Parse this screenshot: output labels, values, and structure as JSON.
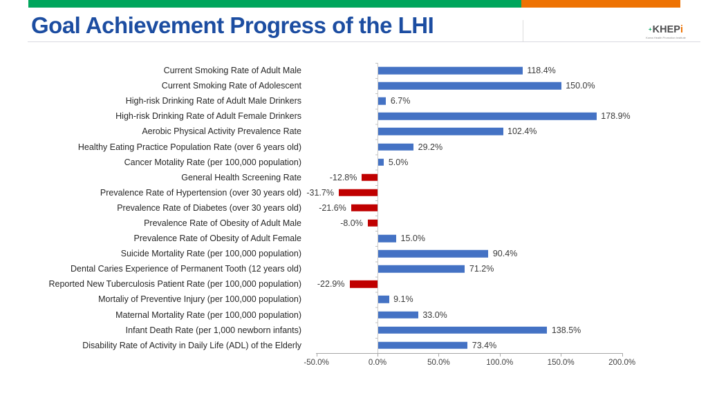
{
  "header": {
    "title": "Goal Achievement Progress of the LHI",
    "logo": {
      "text_main": "KHEP",
      "text_i": "i",
      "plus_icon": "+",
      "subtext": "Korea Health Promotion Institute"
    }
  },
  "colors": {
    "accent_green": "#00a65c",
    "accent_orange": "#ee7202",
    "title_blue": "#1c4da1",
    "bar_blue": "#4472c4",
    "bar_red": "#c00000"
  },
  "chart_data": {
    "type": "bar",
    "orientation": "horizontal",
    "title": "Goal Achievement Progress of the LHI",
    "xlabel": "",
    "ylabel": "",
    "xlim": [
      -50,
      200
    ],
    "grid": false,
    "legend": "none",
    "x_ticks": [
      {
        "value": -50,
        "label": "-50.0%"
      },
      {
        "value": 0,
        "label": "0.0%"
      },
      {
        "value": 50,
        "label": "50.0%"
      },
      {
        "value": 100,
        "label": "100.0%"
      },
      {
        "value": 150,
        "label": "150.0%"
      },
      {
        "value": 200,
        "label": "200.0%"
      }
    ],
    "bar_colors": {
      "positive": "#4472c4",
      "negative": "#c00000"
    },
    "rows": [
      {
        "category": "Current Smoking Rate of Adult Male",
        "value": 118.4,
        "label": "118.4%"
      },
      {
        "category": "Current Smoking Rate of  Adolescent",
        "value": 150.0,
        "label": "150.0%"
      },
      {
        "category": "High-risk Drinking Rate of Adult Male Drinkers",
        "value": 6.7,
        "label": "6.7%"
      },
      {
        "category": "High-risk Drinking Rate of Adult Female Drinkers",
        "value": 178.9,
        "label": "178.9%"
      },
      {
        "category": "Aerobic Physical Activity Prevalence Rate",
        "value": 102.4,
        "label": "102.4%"
      },
      {
        "category": "Healthy Eating  Practice Population Rate (over 6 years old)",
        "value": 29.2,
        "label": "29.2%"
      },
      {
        "category": "Cancer Motality Rate (per 100,000 population)",
        "value": 5.0,
        "label": "5.0%"
      },
      {
        "category": "General Health Screening Rate",
        "value": -12.8,
        "label": "-12.8%"
      },
      {
        "category": "Prevalence Rate of Hypertension (over 30 years old)",
        "value": -31.7,
        "label": "-31.7%"
      },
      {
        "category": "Prevalence Rate of Diabetes (over 30 years old)",
        "value": -21.6,
        "label": "-21.6%"
      },
      {
        "category": "Prevalence Rate of Obesity of Adult Male",
        "value": -8.0,
        "label": "-8.0%"
      },
      {
        "category": "Prevalence Rate of Obesity of Adult Female",
        "value": 15.0,
        "label": "15.0%"
      },
      {
        "category": "Suicide Mortality Rate (per 100,000 population)",
        "value": 90.4,
        "label": "90.4%"
      },
      {
        "category": "Dental Caries Experience of Permanent Tooth (12 years old)",
        "value": 71.2,
        "label": "71.2%"
      },
      {
        "category": "Reported New Tuberculosis Patient Rate (per 100,000 population)",
        "value": -22.9,
        "label": "-22.9%"
      },
      {
        "category": "Mortaliy of Preventive Injury (per 100,000 population)",
        "value": 9.1,
        "label": "9.1%"
      },
      {
        "category": "Maternal Mortality Rate (per 100,000 population)",
        "value": 33.0,
        "label": "33.0%"
      },
      {
        "category": "Infant Death Rate (per 1,000 newborn infants)",
        "value": 138.5,
        "label": "138.5%"
      },
      {
        "category": "Disability Rate of Activity in Daily Life (ADL) of the Elderly",
        "value": 73.4,
        "label": "73.4%"
      }
    ]
  }
}
